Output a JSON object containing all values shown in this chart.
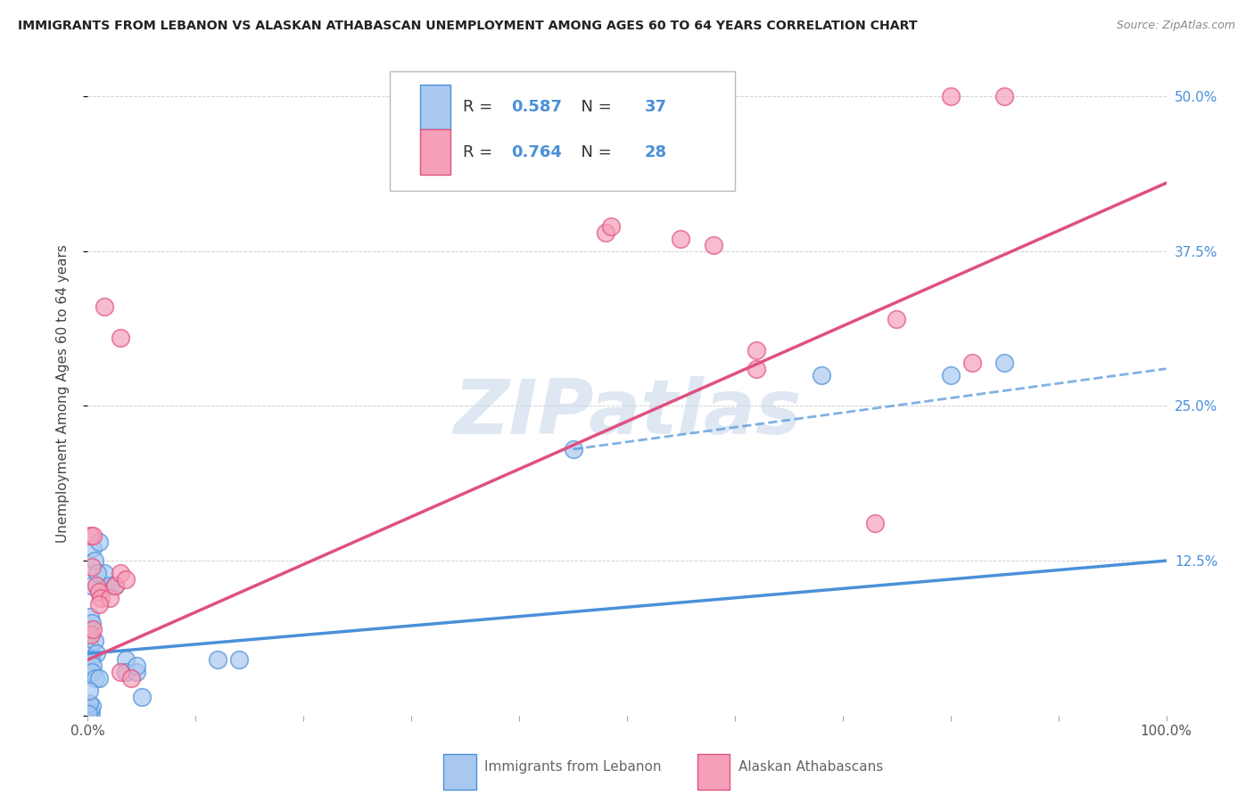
{
  "title": "IMMIGRANTS FROM LEBANON VS ALASKAN ATHABASCAN UNEMPLOYMENT AMONG AGES 60 TO 64 YEARS CORRELATION CHART",
  "source": "Source: ZipAtlas.com",
  "ylabel": "Unemployment Among Ages 60 to 64 years",
  "xlim": [
    0,
    100
  ],
  "ylim": [
    0,
    52
  ],
  "yticks": [
    0,
    12.5,
    25.0,
    37.5,
    50.0
  ],
  "ytick_labels": [
    "",
    "12.5%",
    "25.0%",
    "37.5%",
    "50.0%"
  ],
  "legend_label1": "Immigrants from Lebanon",
  "legend_label2": "Alaskan Athabascans",
  "R1": 0.587,
  "N1": 37,
  "R2": 0.764,
  "N2": 28,
  "color1": "#A8C8F0",
  "color2": "#F5A0B8",
  "line_color1": "#4A90D9",
  "line_color2": "#E05080",
  "background_color": "#FFFFFF",
  "watermark": "ZIPatlas",
  "watermark_color": "#C8D8EA",
  "scatter_blue": [
    [
      0.5,
      13.5
    ],
    [
      1.0,
      14.0
    ],
    [
      0.3,
      10.5
    ],
    [
      0.2,
      8.0
    ],
    [
      0.4,
      7.5
    ],
    [
      0.1,
      6.5
    ],
    [
      0.2,
      5.5
    ],
    [
      0.6,
      6.0
    ],
    [
      0.8,
      5.0
    ],
    [
      0.3,
      4.5
    ],
    [
      0.5,
      4.0
    ],
    [
      0.4,
      3.5
    ],
    [
      0.7,
      3.0
    ],
    [
      1.0,
      3.0
    ],
    [
      1.5,
      11.5
    ],
    [
      2.0,
      10.5
    ],
    [
      2.5,
      10.5
    ],
    [
      3.5,
      4.5
    ],
    [
      3.5,
      3.5
    ],
    [
      4.5,
      3.5
    ],
    [
      4.5,
      4.0
    ],
    [
      0.1,
      0.5
    ],
    [
      0.2,
      0.3
    ],
    [
      0.3,
      0.2
    ],
    [
      0.4,
      0.8
    ],
    [
      0.6,
      12.5
    ],
    [
      0.9,
      11.5
    ],
    [
      12.0,
      4.5
    ],
    [
      14.0,
      4.5
    ],
    [
      45.0,
      21.5
    ],
    [
      68.0,
      27.5
    ],
    [
      80.0,
      27.5
    ],
    [
      85.0,
      28.5
    ],
    [
      5.0,
      1.5
    ],
    [
      0.15,
      1.0
    ],
    [
      0.1,
      2.0
    ],
    [
      0.05,
      0.1
    ]
  ],
  "scatter_pink": [
    [
      0.2,
      14.5
    ],
    [
      0.5,
      14.5
    ],
    [
      0.8,
      10.5
    ],
    [
      1.0,
      10.0
    ],
    [
      1.2,
      9.5
    ],
    [
      2.0,
      9.5
    ],
    [
      2.5,
      10.5
    ],
    [
      3.0,
      11.5
    ],
    [
      3.5,
      11.0
    ],
    [
      1.5,
      33.0
    ],
    [
      3.0,
      30.5
    ],
    [
      3.0,
      3.5
    ],
    [
      4.0,
      3.0
    ],
    [
      0.3,
      6.5
    ],
    [
      0.5,
      7.0
    ],
    [
      0.4,
      12.0
    ],
    [
      1.0,
      9.0
    ],
    [
      48.0,
      39.0
    ],
    [
      48.5,
      39.5
    ],
    [
      55.0,
      38.5
    ],
    [
      58.0,
      38.0
    ],
    [
      62.0,
      29.5
    ],
    [
      62.0,
      28.0
    ],
    [
      73.0,
      15.5
    ],
    [
      75.0,
      32.0
    ],
    [
      82.0,
      28.5
    ],
    [
      80.0,
      50.0
    ],
    [
      85.0,
      50.0
    ]
  ],
  "blue_line": {
    "x0": 0,
    "y0": 5.0,
    "x1": 100,
    "y1": 12.5
  },
  "blue_line_dashed": {
    "x0": 45,
    "y0": 21.5,
    "x1": 100,
    "y1": 28.0
  },
  "pink_line": {
    "x0": 0,
    "y0": 4.5,
    "x1": 100,
    "y1": 43.0
  }
}
